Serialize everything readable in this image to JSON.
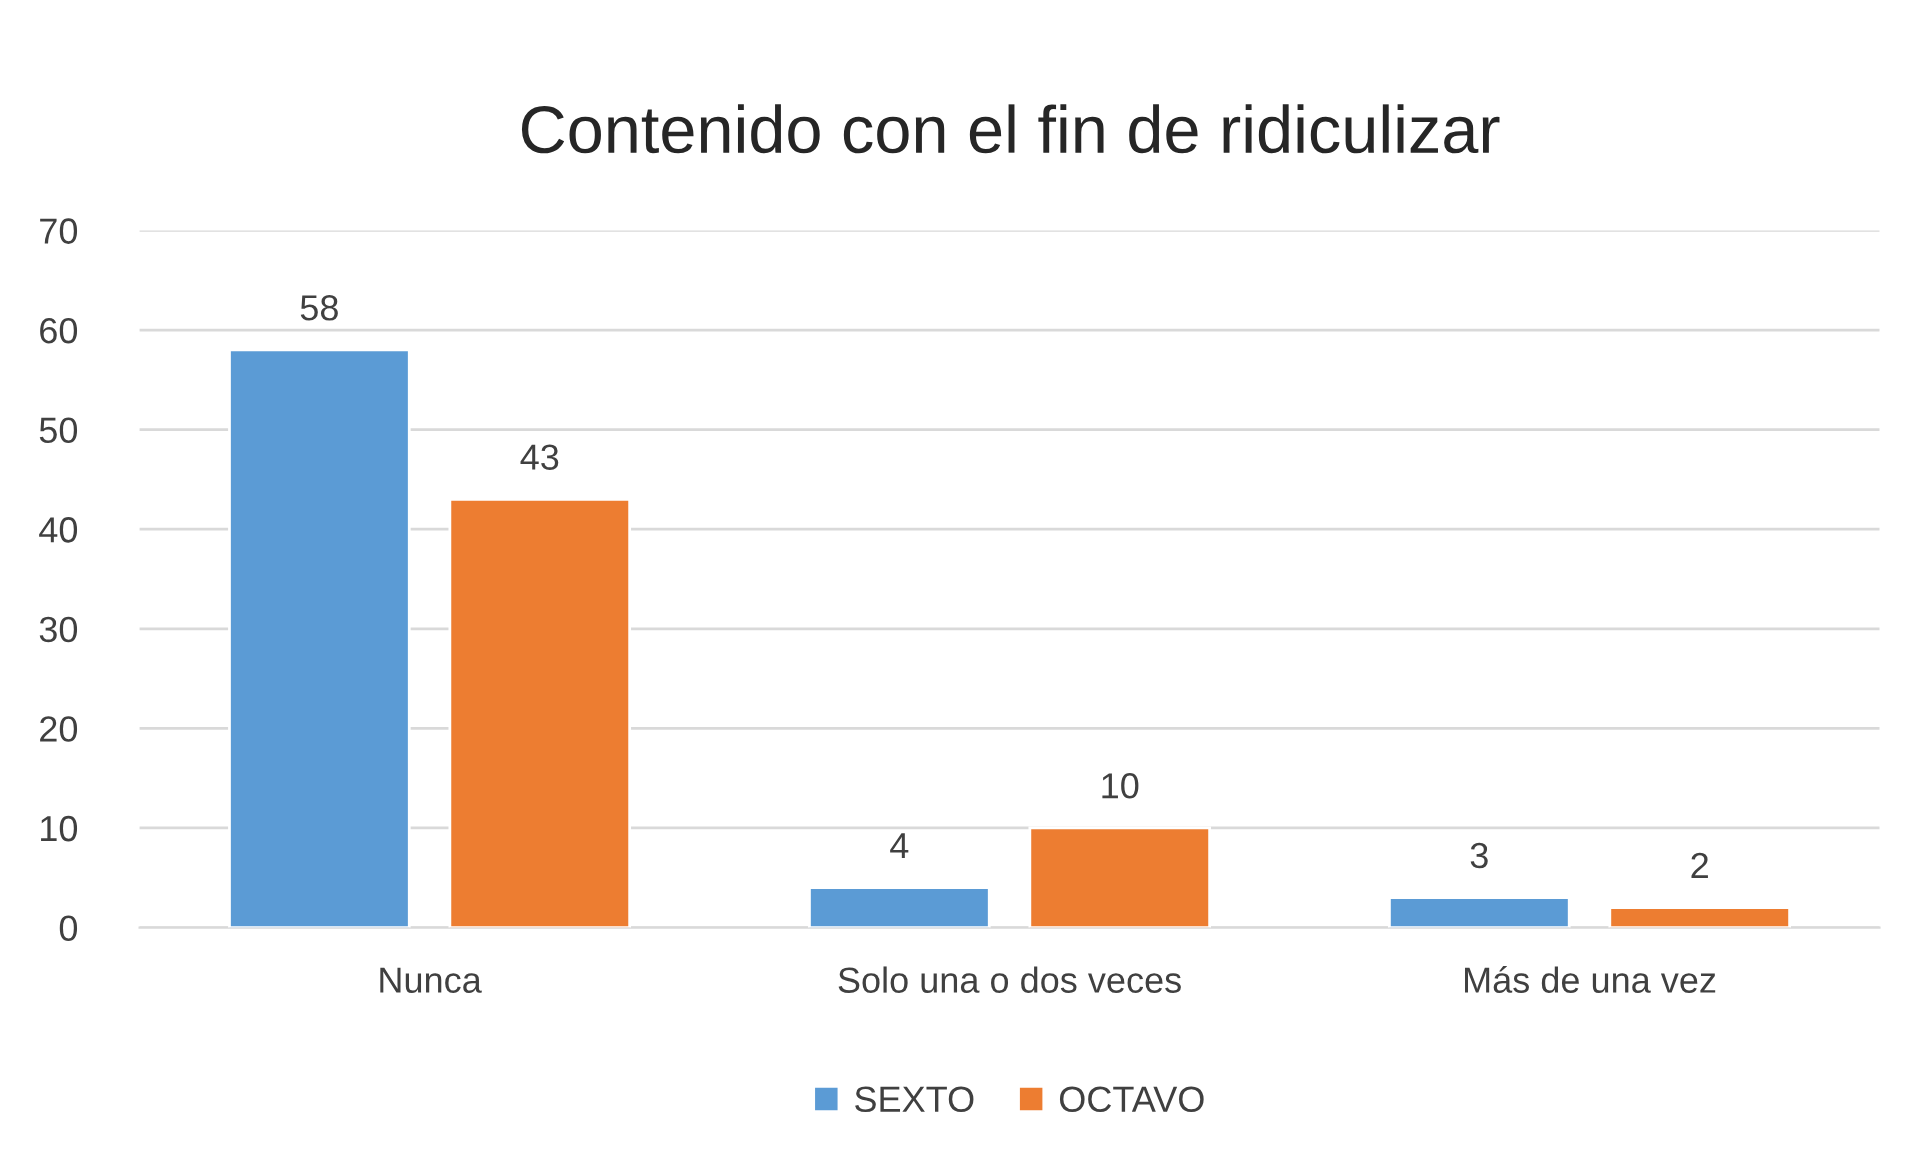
{
  "chart_data": {
    "type": "bar",
    "title": "Contenido con el fin de ridiculizar",
    "categories": [
      "Nunca",
      "Solo una o dos veces",
      "Más de una vez"
    ],
    "series": [
      {
        "name": "SEXTO",
        "color": "#5b9bd5",
        "values": [
          58,
          4,
          3
        ]
      },
      {
        "name": "OCTAVO",
        "color": "#ed7d31",
        "values": [
          43,
          10,
          2
        ]
      }
    ],
    "ylim": [
      0,
      70
    ],
    "yticks": [
      0,
      10,
      20,
      30,
      40,
      50,
      60,
      70
    ],
    "grid": "y",
    "legend": "bottom",
    "data_labels": true
  }
}
